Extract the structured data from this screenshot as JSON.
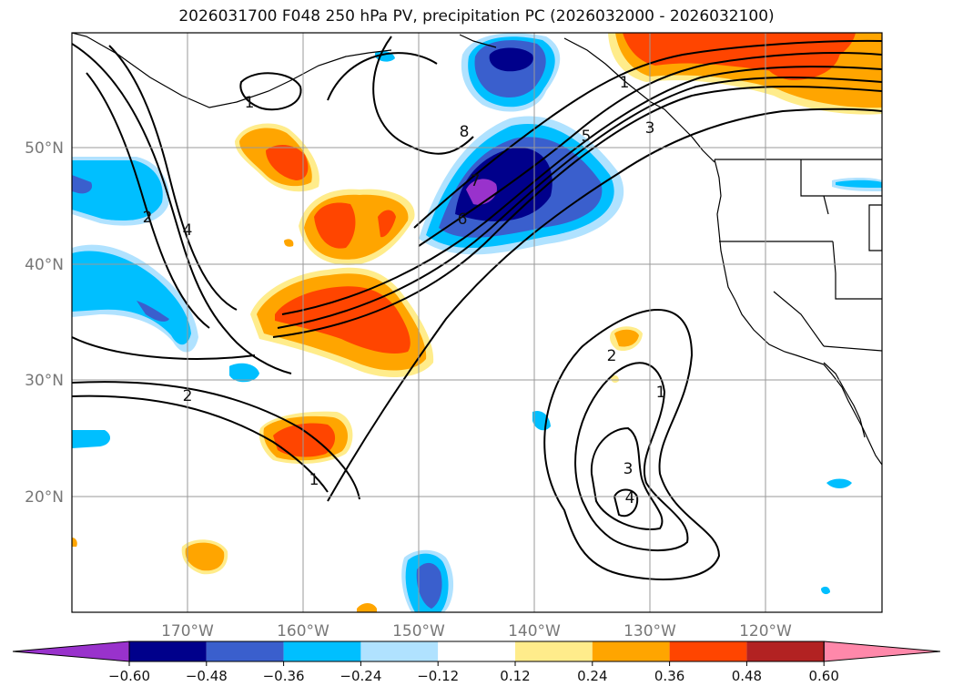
{
  "title": "2026031700 F048 250 hPa PV, precipitation PC (2026032000 - 2026032100)",
  "map": {
    "lon_labels": [
      "170°W",
      "160°W",
      "150°W",
      "140°W",
      "130°W",
      "120°W"
    ],
    "lat_labels": [
      "50°N",
      "40°N",
      "30°N",
      "20°N"
    ],
    "pv_contour_labels": [
      "8",
      "7",
      "6",
      "5",
      "4",
      "3",
      "2",
      "1",
      "2",
      "1",
      "1",
      "2",
      "1",
      "3",
      "4"
    ]
  },
  "colorbar": {
    "ticks": [
      "−0.60",
      "−0.48",
      "−0.36",
      "−0.24",
      "−0.12",
      "0.12",
      "0.24",
      "0.36",
      "0.48",
      "0.60"
    ],
    "colors": [
      "#9932cc",
      "#00008b",
      "#3a5fcd",
      "#00bfff",
      "#b0e2ff",
      "#ffffff",
      "#ffec8b",
      "#ffa500",
      "#ff4500",
      "#b22222",
      "#ff88aa"
    ]
  }
}
